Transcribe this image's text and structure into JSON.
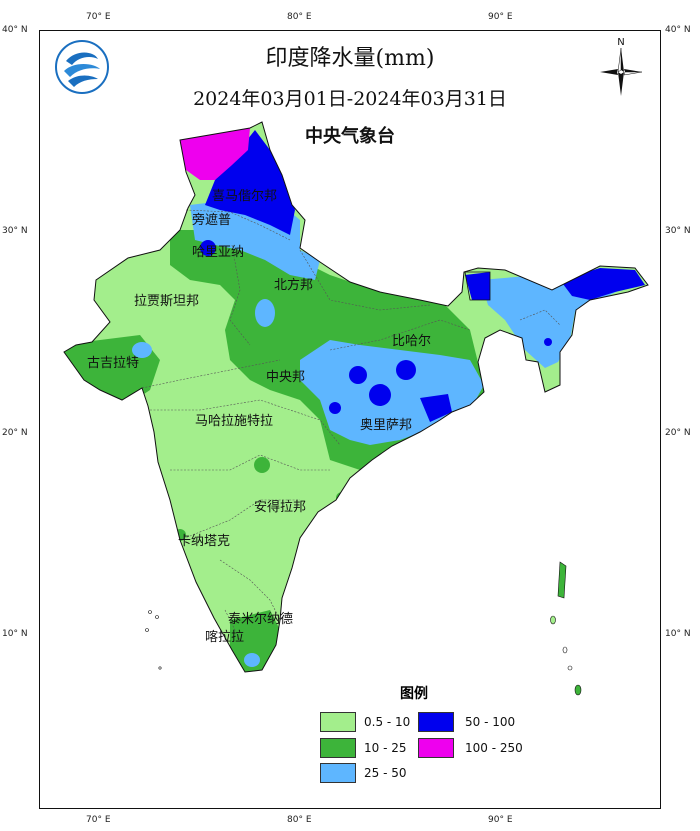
{
  "title": "印度降水量(mm)",
  "period": "2024年03月01日-2024年03月31日",
  "agency": "中央气象台",
  "north_label": "N",
  "lon_ticks": [
    "70° E",
    "80° E",
    "90° E"
  ],
  "lat_ticks": [
    "40° N",
    "30° N",
    "20° N",
    "10° N"
  ],
  "regions": {
    "himachal": "喜马偕尔邦",
    "punjab": "旁遮普",
    "haryana": "哈里亚纳",
    "uttar": "北方邦",
    "rajasthan": "拉贾斯坦邦",
    "bihar": "比哈尔",
    "gujarat": "古吉拉特",
    "madhya": "中央邦",
    "maharashtra": "马哈拉施特拉",
    "odisha": "奥里萨邦",
    "andhra": "安得拉邦",
    "karnataka": "卡纳塔克",
    "tamil": "泰米尔纳德",
    "kerala": "喀拉拉"
  },
  "legend": {
    "title": "图例",
    "items": [
      {
        "label": "0.5 - 10",
        "color": "#a3ee8c"
      },
      {
        "label": "10  - 25",
        "color": "#3db43a"
      },
      {
        "label": "25  - 50",
        "color": "#5eb6ff"
      },
      {
        "label": "50  - 100",
        "color": "#0000ee"
      },
      {
        "label": "100 - 250",
        "color": "#ee00ee"
      }
    ]
  },
  "icons": {
    "logo": "cma-logo-icon",
    "compass": "north-arrow-icon"
  }
}
